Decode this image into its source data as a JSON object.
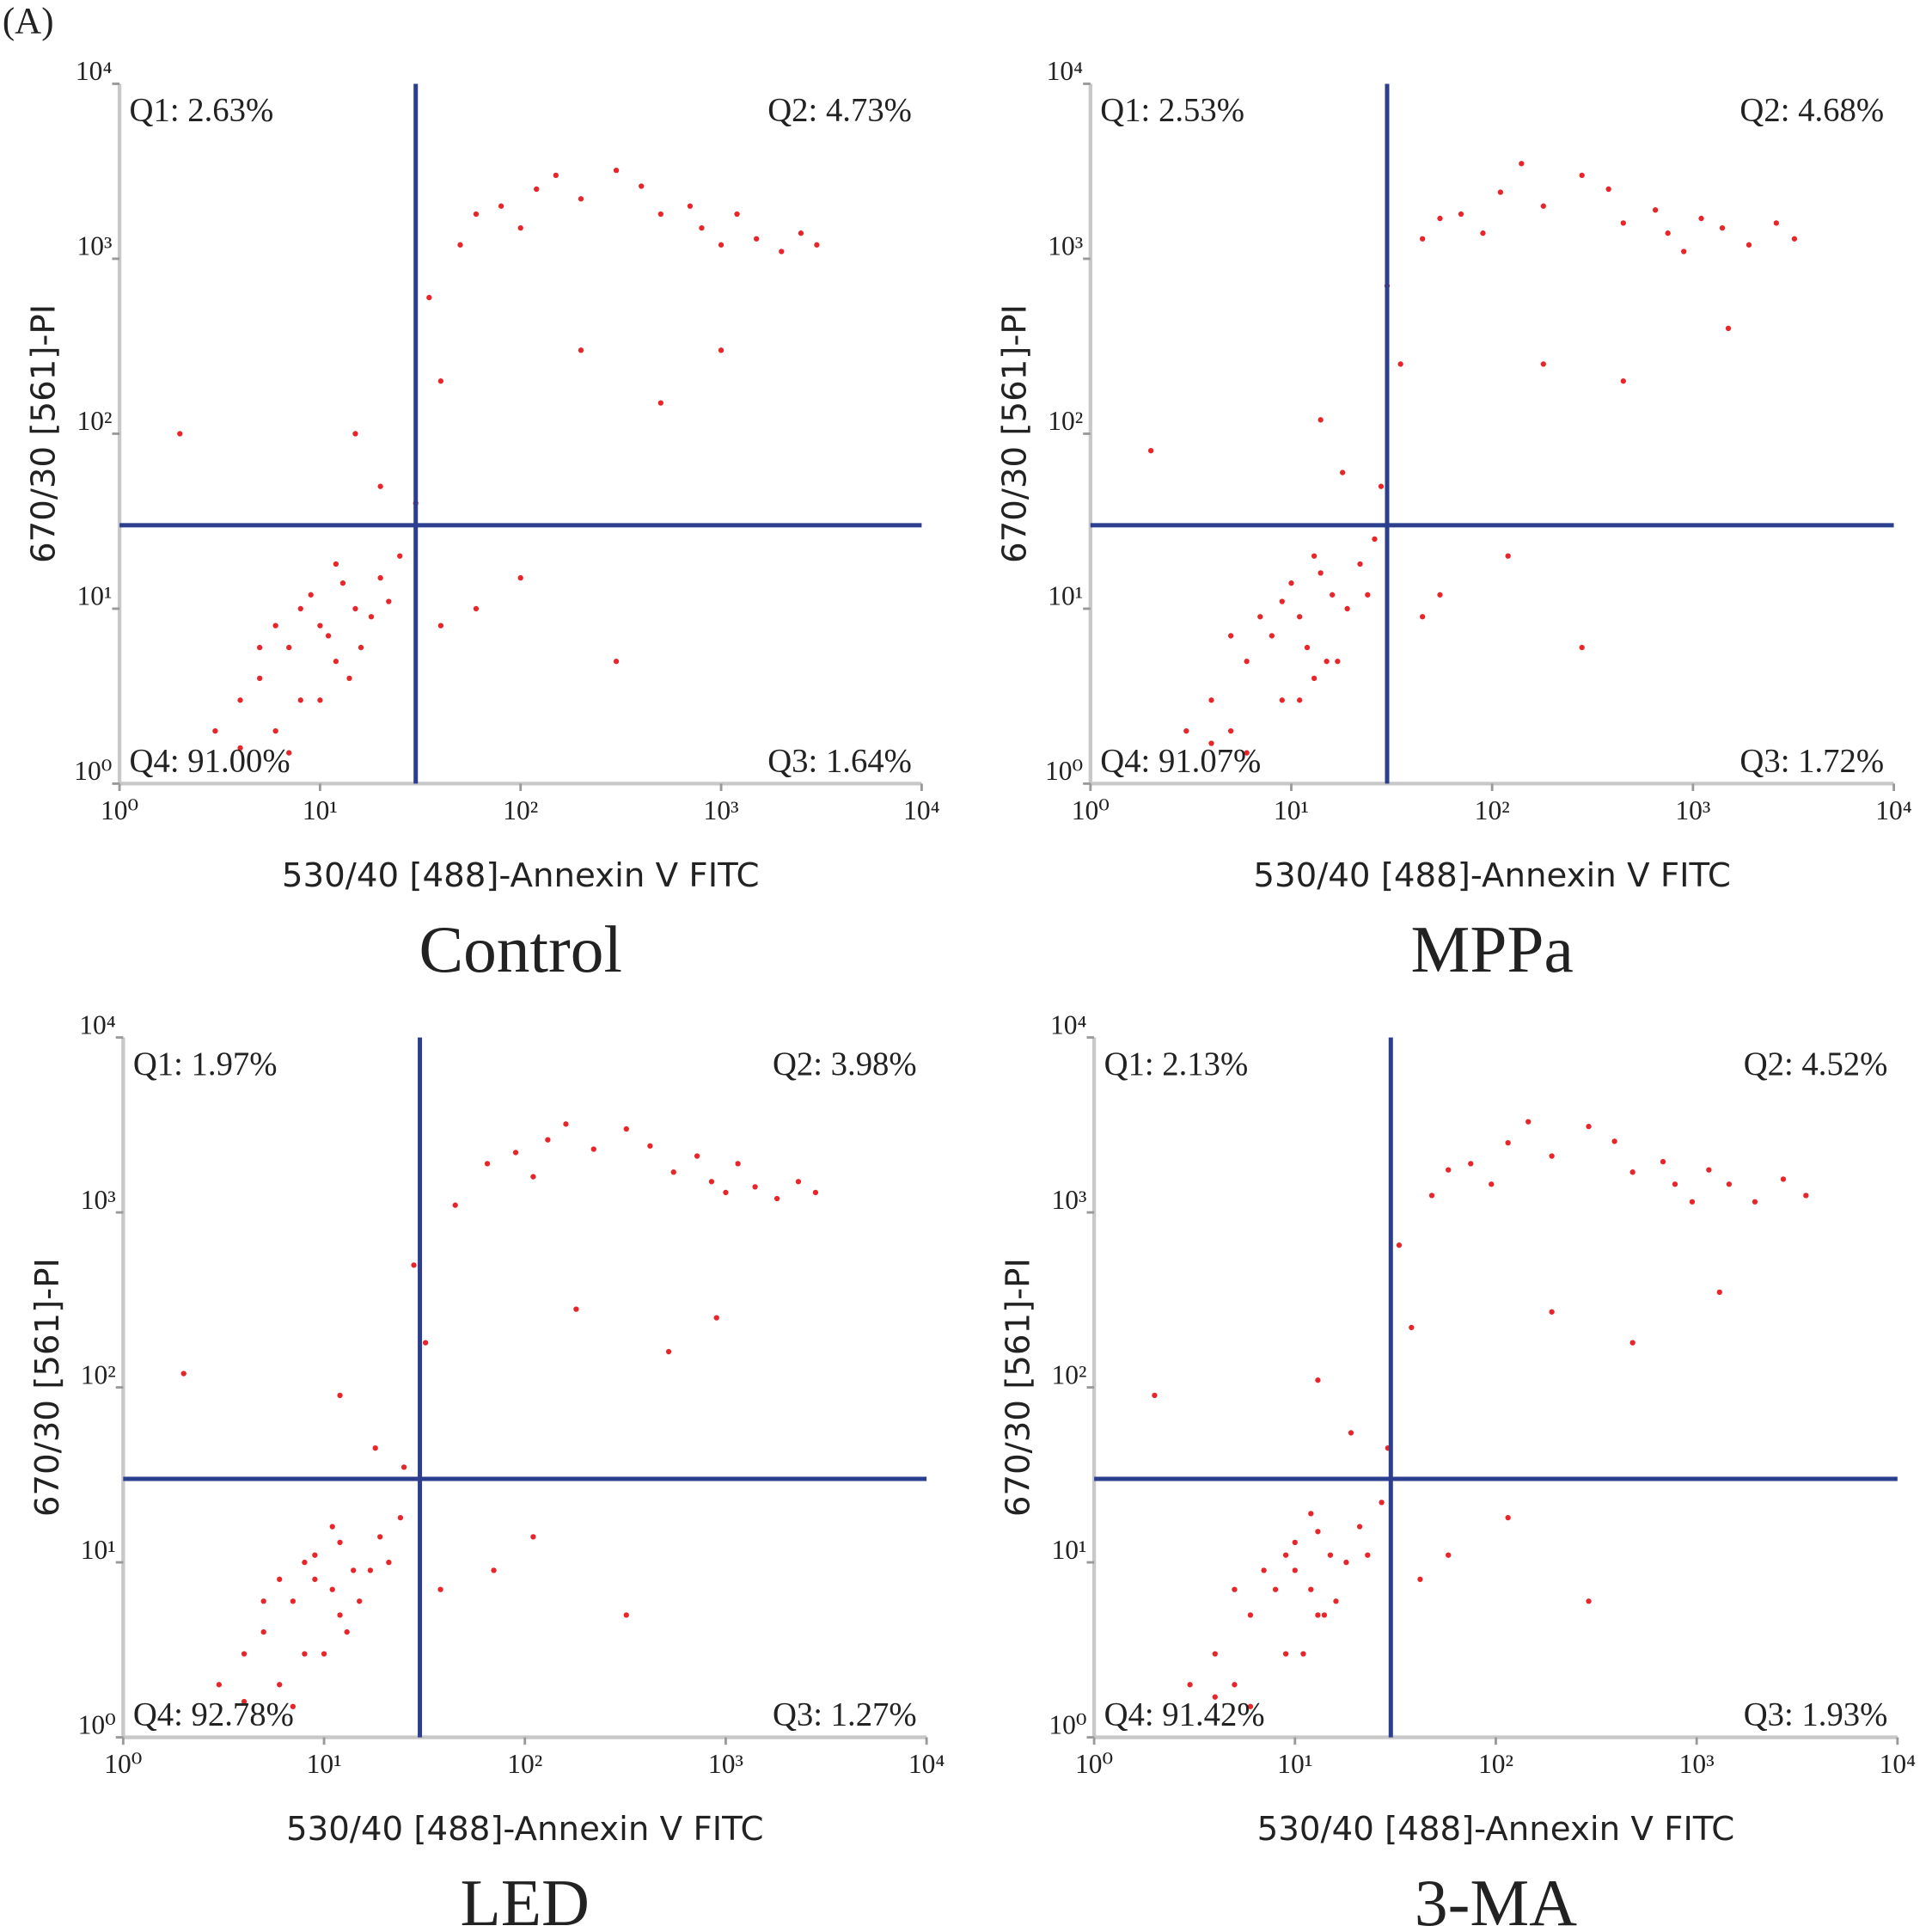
{
  "label": "(A)",
  "chart_data": [
    {
      "type": "scatter",
      "title": "Control",
      "xlabel": "530/40 [488]-Annexin V FITC",
      "ylabel": "670/30 [561]-PI",
      "xlog": true,
      "ylog": true,
      "xlim": [
        1,
        10000
      ],
      "ylim": [
        1,
        10000
      ],
      "xticks": [
        {
          "value": 1,
          "label": "10⁰"
        },
        {
          "value": 10,
          "label": "10¹"
        },
        {
          "value": 100,
          "label": "10²"
        },
        {
          "value": 1000,
          "label": "10³"
        },
        {
          "value": 10000,
          "label": "10⁴"
        }
      ],
      "yticks": [
        {
          "value": 1,
          "label": "10⁰"
        },
        {
          "value": 10,
          "label": "10¹"
        },
        {
          "value": 100,
          "label": "10²"
        },
        {
          "value": 1000,
          "label": "10³"
        },
        {
          "value": 10000,
          "label": "10⁴"
        }
      ],
      "color": "#e8262a",
      "gate_color": "#2b3f8e",
      "xgate": 30,
      "ygate": 30,
      "quadrants": [
        "Q1: 2.63%",
        "Q2: 4.73%",
        "Q3: 1.64%",
        "Q4: 91.00%"
      ],
      "x": [
        5,
        7,
        10,
        12,
        8,
        6,
        15,
        4,
        9,
        11,
        20,
        3,
        6,
        14,
        18,
        25,
        7,
        13,
        5,
        10,
        16,
        8,
        22,
        4,
        12,
        30,
        20,
        40,
        35,
        50,
        15,
        80,
        120,
        150,
        200,
        300,
        500,
        800,
        1000,
        1500,
        2000,
        2500,
        100,
        60,
        400,
        700,
        1200,
        3000,
        200,
        500,
        60,
        100,
        2,
        300,
        40,
        1000
      ],
      "y": [
        4,
        6,
        8,
        5,
        3,
        2,
        10,
        3,
        12,
        7,
        15,
        2,
        8,
        4,
        9,
        20,
        1.5,
        14,
        6,
        3,
        6,
        10,
        11,
        1.6,
        18,
        40,
        50,
        200,
        600,
        1200,
        100,
        2000,
        2500,
        3000,
        2200,
        3200,
        1800,
        1500,
        1200,
        1300,
        1100,
        1400,
        1500,
        1800,
        2600,
        2000,
        1800,
        1200,
        300,
        150,
        10,
        15,
        100,
        5,
        8,
        300
      ]
    },
    {
      "type": "scatter",
      "title": "MPPa",
      "xlabel": "530/40 [488]-Annexin V FITC",
      "ylabel": "670/30 [561]-PI",
      "xlog": true,
      "ylog": true,
      "xlim": [
        1,
        10000
      ],
      "ylim": [
        1,
        10000
      ],
      "xticks": [
        {
          "value": 1,
          "label": "10⁰"
        },
        {
          "value": 10,
          "label": "10¹"
        },
        {
          "value": 100,
          "label": "10²"
        },
        {
          "value": 1000,
          "label": "10³"
        },
        {
          "value": 10000,
          "label": "10⁴"
        }
      ],
      "yticks": [
        {
          "value": 1,
          "label": "10⁰"
        },
        {
          "value": 10,
          "label": "10¹"
        },
        {
          "value": 100,
          "label": "10²"
        },
        {
          "value": 1000,
          "label": "10³"
        },
        {
          "value": 10000,
          "label": "10⁴"
        }
      ],
      "color": "#e8262a",
      "gate_color": "#2b3f8e",
      "xgate": 30,
      "ygate": 30,
      "quadrants": [
        "Q1: 2.53%",
        "Q2: 4.68%",
        "Q3: 1.72%",
        "Q4: 91.07%"
      ],
      "x": [
        6,
        8,
        11,
        13,
        9,
        5,
        16,
        4,
        10,
        12,
        22,
        3,
        7,
        15,
        19,
        26,
        6,
        14,
        5,
        11,
        17,
        9,
        24,
        4,
        13,
        28,
        18,
        35,
        30,
        45,
        14,
        70,
        110,
        140,
        180,
        280,
        450,
        750,
        900,
        1400,
        1900,
        2600,
        90,
        55,
        380,
        650,
        1100,
        3200,
        180,
        450,
        55,
        120,
        2,
        280,
        45,
        1500
      ],
      "y": [
        5,
        7,
        9,
        4,
        3,
        2,
        12,
        3,
        14,
        6,
        18,
        2,
        9,
        5,
        10,
        25,
        1.5,
        16,
        7,
        3,
        5,
        11,
        12,
        1.7,
        20,
        50,
        60,
        250,
        700,
        1300,
        120,
        1800,
        2400,
        3500,
        2000,
        3000,
        1600,
        1400,
        1100,
        1500,
        1200,
        1600,
        1400,
        1700,
        2500,
        1900,
        1700,
        1300,
        250,
        200,
        12,
        20,
        80,
        6,
        9,
        400
      ]
    },
    {
      "type": "scatter",
      "title": "LED",
      "xlabel": "530/40 [488]-Annexin V FITC",
      "ylabel": "670/30 [561]-PI",
      "xlog": true,
      "ylog": true,
      "xlim": [
        1,
        10000
      ],
      "ylim": [
        1,
        10000
      ],
      "xticks": [
        {
          "value": 1,
          "label": "10⁰"
        },
        {
          "value": 10,
          "label": "10¹"
        },
        {
          "value": 100,
          "label": "10²"
        },
        {
          "value": 1000,
          "label": "10³"
        },
        {
          "value": 10000,
          "label": "10⁴"
        }
      ],
      "yticks": [
        {
          "value": 1,
          "label": "10⁰"
        },
        {
          "value": 10,
          "label": "10¹"
        },
        {
          "value": 100,
          "label": "10²"
        },
        {
          "value": 1000,
          "label": "10³"
        },
        {
          "value": 10000,
          "label": "10⁴"
        }
      ],
      "color": "#e8262a",
      "gate_color": "#2b3f8e",
      "xgate": 30,
      "ygate": 30,
      "quadrants": [
        "Q1: 1.97%",
        "Q2: 3.98%",
        "Q3: 1.27%",
        "Q4: 92.78%"
      ],
      "x": [
        5,
        7,
        9,
        12,
        8,
        6,
        14,
        4,
        9,
        11,
        19,
        3,
        6,
        13,
        17,
        24,
        7,
        12,
        5,
        10,
        15,
        8,
        21,
        4,
        11,
        25,
        18,
        32,
        28,
        45,
        12,
        90,
        130,
        160,
        220,
        320,
        550,
        850,
        1000,
        1400,
        1800,
        2300,
        110,
        65,
        420,
        720,
        1150,
        2800,
        180,
        520,
        70,
        110,
        2,
        320,
        38,
        900
      ],
      "y": [
        4,
        6,
        8,
        5,
        3,
        2,
        9,
        3,
        11,
        7,
        14,
        2,
        8,
        4,
        9,
        18,
        1.5,
        13,
        6,
        3,
        6,
        10,
        10,
        1.6,
        16,
        35,
        45,
        180,
        500,
        1100,
        90,
        2200,
        2600,
        3200,
        2300,
        3000,
        1700,
        1500,
        1300,
        1400,
        1200,
        1500,
        1600,
        1900,
        2400,
        2100,
        1900,
        1300,
        280,
        160,
        9,
        14,
        120,
        5,
        7,
        250
      ]
    },
    {
      "type": "scatter",
      "title": "3-MA",
      "xlabel": "530/40 [488]-Annexin V FITC",
      "ylabel": "670/30 [561]-PI",
      "xlog": true,
      "ylog": true,
      "xlim": [
        1,
        10000
      ],
      "ylim": [
        1,
        10000
      ],
      "xticks": [
        {
          "value": 1,
          "label": "10⁰"
        },
        {
          "value": 10,
          "label": "10¹"
        },
        {
          "value": 100,
          "label": "10²"
        },
        {
          "value": 1000,
          "label": "10³"
        },
        {
          "value": 10000,
          "label": "10⁴"
        }
      ],
      "yticks": [
        {
          "value": 1,
          "label": "10⁰"
        },
        {
          "value": 10,
          "label": "10¹"
        },
        {
          "value": 100,
          "label": "10²"
        },
        {
          "value": 1000,
          "label": "10³"
        },
        {
          "value": 10000,
          "label": "10⁴"
        }
      ],
      "color": "#e8262a",
      "gate_color": "#2b3f8e",
      "xgate": 30,
      "ygate": 30,
      "quadrants": [
        "Q1: 2.13%",
        "Q2: 4.52%",
        "Q3: 1.93%",
        "Q4: 91.42%"
      ],
      "x": [
        6,
        8,
        10,
        13,
        9,
        5,
        15,
        4,
        10,
        12,
        21,
        3,
        7,
        14,
        18,
        27,
        6,
        13,
        5,
        11,
        16,
        9,
        23,
        4,
        12,
        29,
        19,
        38,
        33,
        48,
        13,
        75,
        115,
        145,
        190,
        290,
        480,
        780,
        950,
        1450,
        1950,
        2700,
        95,
        58,
        390,
        680,
        1150,
        3500,
        190,
        480,
        58,
        115,
        2,
        290,
        42,
        1300
      ],
      "y": [
        5,
        7,
        9,
        5,
        3,
        2,
        11,
        3,
        13,
        7,
        16,
        2,
        9,
        5,
        10,
        22,
        1.5,
        15,
        7,
        3,
        6,
        11,
        11,
        1.7,
        19,
        45,
        55,
        220,
        650,
        1250,
        110,
        1900,
        2500,
        3300,
        2100,
        3100,
        1700,
        1450,
        1150,
        1450,
        1150,
        1550,
        1450,
        1750,
        2550,
        1950,
        1750,
        1250,
        270,
        180,
        11,
        18,
        90,
        6,
        8,
        350
      ]
    }
  ]
}
